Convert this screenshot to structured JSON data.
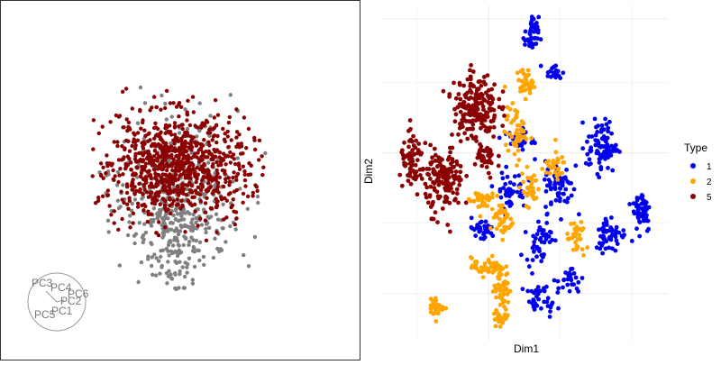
{
  "colors": {
    "grey_points": "#808080",
    "type_1": "#0000ee",
    "type_2": "#ffa500",
    "type_5": "#8b0000",
    "grid": "#ebebeb",
    "loading_text": "#777777"
  },
  "left_plot": {
    "type": "scatter",
    "point_groups": [
      "grey",
      "dark-red"
    ],
    "loadings": [
      "PC3",
      "PC4",
      "PC6",
      "PC2",
      "PC1",
      "PC5"
    ]
  },
  "chart_data": [
    {
      "type": "scatter",
      "panel": "biplot",
      "axes_visible": false,
      "series": [
        {
          "color": "#808080",
          "center": [
            0.0,
            0.0
          ],
          "spread": [
            1.1,
            1.3
          ]
        },
        {
          "color": "#8b0000",
          "center": [
            0.0,
            0.35
          ],
          "spread": [
            1.3,
            0.9
          ]
        }
      ],
      "annotations": [
        "PC3",
        "PC4",
        "PC6",
        "PC2",
        "PC1",
        "PC5"
      ]
    },
    {
      "type": "scatter",
      "panel": "tsne",
      "xlabel": "Dim1",
      "ylabel": "Dim2",
      "grid": true,
      "tick_labels_visible": false,
      "legend": {
        "title": "Type",
        "position": "right",
        "entries": [
          "1",
          "2",
          "5"
        ]
      },
      "series": [
        {
          "name": "1",
          "color": "#0000ee",
          "clusters": [
            {
              "x": 0.525,
              "y": 0.91,
              "sx": 0.022,
              "sy": 0.05,
              "n": 40
            },
            {
              "x": 0.6,
              "y": 0.8,
              "sx": 0.03,
              "sy": 0.022,
              "n": 20
            },
            {
              "x": 0.77,
              "y": 0.58,
              "sx": 0.05,
              "sy": 0.07,
              "n": 90
            },
            {
              "x": 0.91,
              "y": 0.39,
              "sx": 0.03,
              "sy": 0.06,
              "n": 55
            },
            {
              "x": 0.62,
              "y": 0.46,
              "sx": 0.045,
              "sy": 0.07,
              "n": 70
            },
            {
              "x": 0.8,
              "y": 0.32,
              "sx": 0.05,
              "sy": 0.05,
              "n": 55
            },
            {
              "x": 0.45,
              "y": 0.45,
              "sx": 0.05,
              "sy": 0.05,
              "n": 45
            },
            {
              "x": 0.35,
              "y": 0.33,
              "sx": 0.045,
              "sy": 0.03,
              "n": 35
            },
            {
              "x": 0.55,
              "y": 0.3,
              "sx": 0.04,
              "sy": 0.06,
              "n": 45
            },
            {
              "x": 0.56,
              "y": 0.12,
              "sx": 0.05,
              "sy": 0.04,
              "n": 35
            },
            {
              "x": 0.66,
              "y": 0.18,
              "sx": 0.04,
              "sy": 0.04,
              "n": 25
            },
            {
              "x": 0.48,
              "y": 0.6,
              "sx": 0.05,
              "sy": 0.03,
              "n": 30
            }
          ]
        },
        {
          "name": "2",
          "color": "#ffa500",
          "clusters": [
            {
              "x": 0.5,
              "y": 0.77,
              "sx": 0.025,
              "sy": 0.04,
              "n": 35
            },
            {
              "x": 0.47,
              "y": 0.62,
              "sx": 0.035,
              "sy": 0.07,
              "n": 50
            },
            {
              "x": 0.35,
              "y": 0.42,
              "sx": 0.04,
              "sy": 0.03,
              "n": 40
            },
            {
              "x": 0.42,
              "y": 0.36,
              "sx": 0.035,
              "sy": 0.05,
              "n": 35
            },
            {
              "x": 0.52,
              "y": 0.46,
              "sx": 0.03,
              "sy": 0.05,
              "n": 30
            },
            {
              "x": 0.6,
              "y": 0.52,
              "sx": 0.04,
              "sy": 0.04,
              "n": 30
            },
            {
              "x": 0.68,
              "y": 0.3,
              "sx": 0.03,
              "sy": 0.05,
              "n": 30
            },
            {
              "x": 0.37,
              "y": 0.22,
              "sx": 0.05,
              "sy": 0.025,
              "n": 45
            },
            {
              "x": 0.42,
              "y": 0.16,
              "sx": 0.025,
              "sy": 0.05,
              "n": 45
            },
            {
              "x": 0.42,
              "y": 0.07,
              "sx": 0.025,
              "sy": 0.025,
              "n": 30
            },
            {
              "x": 0.19,
              "y": 0.1,
              "sx": 0.025,
              "sy": 0.025,
              "n": 30
            }
          ]
        },
        {
          "name": "5",
          "color": "#8b0000",
          "clusters": [
            {
              "x": 0.33,
              "y": 0.7,
              "sx": 0.07,
              "sy": 0.09,
              "n": 190
            },
            {
              "x": 0.22,
              "y": 0.48,
              "sx": 0.06,
              "sy": 0.09,
              "n": 150
            },
            {
              "x": 0.11,
              "y": 0.53,
              "sx": 0.04,
              "sy": 0.07,
              "n": 70
            },
            {
              "x": 0.36,
              "y": 0.54,
              "sx": 0.04,
              "sy": 0.05,
              "n": 40
            }
          ]
        }
      ]
    }
  ],
  "right_plot": {
    "x_axis_title": "Dim1",
    "y_axis_title": "Dim2",
    "legend_title": "Type",
    "legend_labels": [
      "1",
      "2",
      "5"
    ]
  }
}
